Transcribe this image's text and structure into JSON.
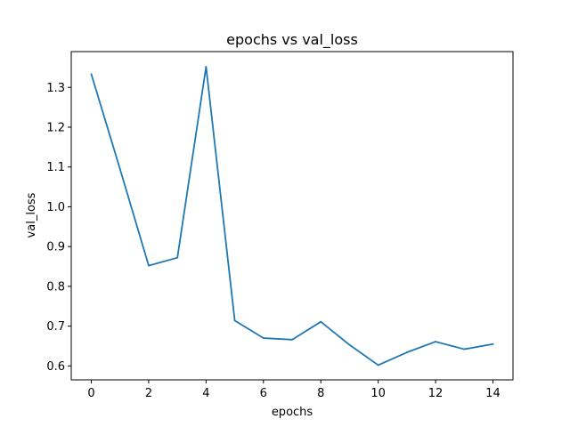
{
  "chart_data": {
    "type": "line",
    "title": "epochs vs val_loss",
    "xlabel": "epochs",
    "ylabel": "val_loss",
    "x": [
      0,
      1,
      2,
      3,
      4,
      5,
      6,
      7,
      8,
      9,
      10,
      11,
      12,
      13,
      14
    ],
    "series": [
      {
        "values": [
          1.333,
          1.095,
          0.852,
          0.872,
          1.352,
          0.714,
          0.67,
          0.666,
          0.711,
          0.653,
          0.602,
          0.634,
          0.661,
          0.642,
          0.655
        ]
      }
    ],
    "xlim": [
      -0.7,
      14.7
    ],
    "ylim": [
      0.565,
      1.39
    ],
    "xticks": [
      0,
      2,
      4,
      6,
      8,
      10,
      12,
      14
    ],
    "xtick_labels": [
      "0",
      "2",
      "4",
      "6",
      "8",
      "10",
      "12",
      "14"
    ],
    "yticks": [
      0.6,
      0.7,
      0.8,
      0.9,
      1.0,
      1.1,
      1.2,
      1.3
    ],
    "ytick_labels": [
      "0.6",
      "0.7",
      "0.8",
      "0.9",
      "1.0",
      "1.1",
      "1.2",
      "1.3"
    ],
    "grid": false,
    "line_color": "#1f77b4"
  }
}
